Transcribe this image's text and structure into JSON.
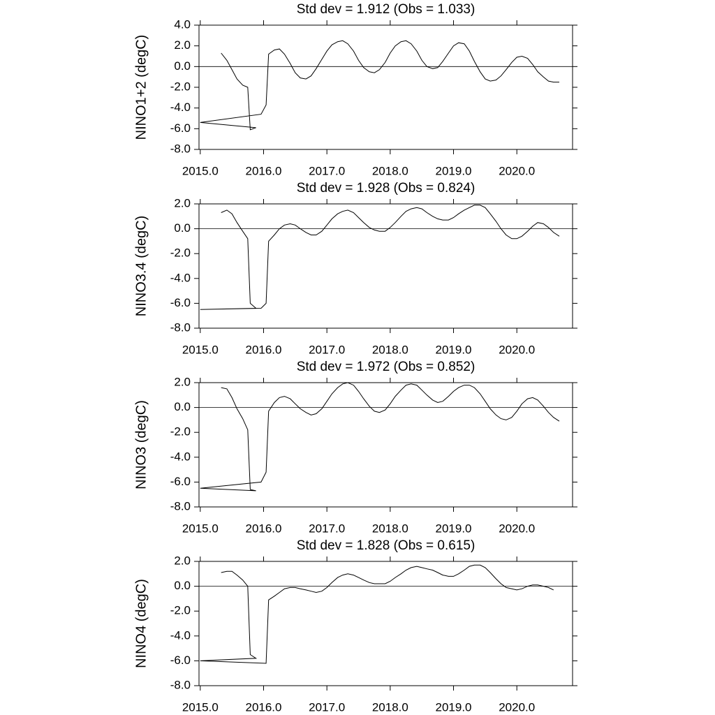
{
  "chart_data": [
    {
      "type": "line",
      "title": "Std dev = 1.912 (Obs = 1.033)",
      "y_label": "NINO1+2 (degC)",
      "color": "#000000",
      "x": [
        2015.33,
        2015.42,
        2015.5,
        2015.58,
        2015.67,
        2015.75,
        2015.79,
        2015.88,
        2015.0,
        2015.96,
        2016.04,
        2016.08,
        2016.17,
        2016.25,
        2016.33,
        2016.42,
        2016.5,
        2016.58,
        2016.67,
        2016.75,
        2016.83,
        2016.92,
        2017.0,
        2017.08,
        2017.17,
        2017.25,
        2017.33,
        2017.42,
        2017.5,
        2017.58,
        2017.67,
        2017.75,
        2017.83,
        2017.92,
        2018.0,
        2018.08,
        2018.17,
        2018.25,
        2018.33,
        2018.42,
        2018.5,
        2018.58,
        2018.67,
        2018.75,
        2018.83,
        2018.92,
        2019.0,
        2019.08,
        2019.17,
        2019.25,
        2019.33,
        2019.42,
        2019.5,
        2019.58,
        2019.67,
        2019.75,
        2019.83,
        2019.92,
        2020.0,
        2020.08,
        2020.17,
        2020.25,
        2020.33,
        2020.42,
        2020.5,
        2020.58,
        2020.67
      ],
      "values": [
        1.3,
        0.6,
        -0.3,
        -1.2,
        -1.8,
        -2.0,
        -6.1,
        -5.9,
        -5.4,
        -4.6,
        -3.7,
        1.2,
        1.6,
        1.7,
        1.2,
        0.3,
        -0.6,
        -1.1,
        -1.2,
        -0.9,
        -0.2,
        0.7,
        1.5,
        2.1,
        2.4,
        2.5,
        2.2,
        1.5,
        0.6,
        -0.1,
        -0.5,
        -0.6,
        -0.3,
        0.4,
        1.3,
        2.0,
        2.4,
        2.5,
        2.2,
        1.5,
        0.6,
        0.0,
        -0.2,
        -0.1,
        0.5,
        1.3,
        2.0,
        2.3,
        2.2,
        1.5,
        0.5,
        -0.5,
        -1.2,
        -1.4,
        -1.3,
        -0.9,
        -0.3,
        0.4,
        0.9,
        1.0,
        0.8,
        0.2,
        -0.5,
        -1.0,
        -1.4,
        -1.5,
        -1.5
      ],
      "xlim": [
        2014.98,
        2020.88
      ],
      "xticks": [
        {
          "value": 2015,
          "label": "2015.0"
        },
        {
          "value": 2016,
          "label": "2016.0"
        },
        {
          "value": 2017,
          "label": "2017.0"
        },
        {
          "value": 2018,
          "label": "2018.0"
        },
        {
          "value": 2019,
          "label": "2019.0"
        },
        {
          "value": 2020,
          "label": "2020.0"
        }
      ],
      "ylim": [
        -8,
        4
      ],
      "yticks": [
        {
          "value": 4,
          "label": "4.0"
        },
        {
          "value": 2,
          "label": "2.0"
        },
        {
          "value": 0,
          "label": "0.0"
        },
        {
          "value": -2,
          "label": "-2.0"
        },
        {
          "value": -4,
          "label": "-4.0"
        },
        {
          "value": -6,
          "label": "-6.0"
        },
        {
          "value": -8,
          "label": "-8.0"
        }
      ],
      "hline": 0
    },
    {
      "type": "line",
      "title": "Std dev = 1.928 (Obs = 0.824)",
      "y_label": "NINO3.4 (degC)",
      "color": "#000000",
      "x": [
        2015.33,
        2015.42,
        2015.5,
        2015.58,
        2015.67,
        2015.75,
        2015.79,
        2015.88,
        2015.0,
        2015.96,
        2016.04,
        2016.08,
        2016.17,
        2016.25,
        2016.33,
        2016.42,
        2016.5,
        2016.58,
        2016.67,
        2016.75,
        2016.83,
        2016.92,
        2017.0,
        2017.08,
        2017.17,
        2017.25,
        2017.33,
        2017.42,
        2017.5,
        2017.58,
        2017.67,
        2017.75,
        2017.83,
        2017.92,
        2018.0,
        2018.08,
        2018.17,
        2018.25,
        2018.33,
        2018.42,
        2018.5,
        2018.58,
        2018.67,
        2018.75,
        2018.83,
        2018.92,
        2019.0,
        2019.08,
        2019.17,
        2019.25,
        2019.33,
        2019.42,
        2019.5,
        2019.58,
        2019.67,
        2019.75,
        2019.83,
        2019.92,
        2020.0,
        2020.08,
        2020.17,
        2020.25,
        2020.33,
        2020.42,
        2020.5,
        2020.58,
        2020.67
      ],
      "values": [
        1.3,
        1.5,
        1.2,
        0.5,
        -0.2,
        -0.8,
        -6.0,
        -6.4,
        -6.5,
        -6.4,
        -6.0,
        -1.0,
        -0.5,
        0.0,
        0.3,
        0.4,
        0.3,
        0.0,
        -0.3,
        -0.5,
        -0.5,
        -0.2,
        0.3,
        0.8,
        1.2,
        1.4,
        1.5,
        1.3,
        0.9,
        0.5,
        0.1,
        -0.1,
        -0.2,
        -0.2,
        0.1,
        0.5,
        1.0,
        1.4,
        1.6,
        1.7,
        1.6,
        1.3,
        1.0,
        0.8,
        0.7,
        0.7,
        0.9,
        1.2,
        1.5,
        1.7,
        1.9,
        1.9,
        1.7,
        1.2,
        0.6,
        0.0,
        -0.5,
        -0.8,
        -0.8,
        -0.6,
        -0.2,
        0.2,
        0.5,
        0.4,
        0.1,
        -0.3,
        -0.6
      ],
      "xlim": [
        2014.98,
        2020.88
      ],
      "xticks": [
        {
          "value": 2015,
          "label": "2015.0"
        },
        {
          "value": 2016,
          "label": "2016.0"
        },
        {
          "value": 2017,
          "label": "2017.0"
        },
        {
          "value": 2018,
          "label": "2018.0"
        },
        {
          "value": 2019,
          "label": "2019.0"
        },
        {
          "value": 2020,
          "label": "2020.0"
        }
      ],
      "ylim": [
        -8,
        2
      ],
      "yticks": [
        {
          "value": 2,
          "label": "2.0"
        },
        {
          "value": 0,
          "label": "0.0"
        },
        {
          "value": -2,
          "label": "-2.0"
        },
        {
          "value": -4,
          "label": "-4.0"
        },
        {
          "value": -6,
          "label": "-6.0"
        },
        {
          "value": -8,
          "label": "-8.0"
        }
      ],
      "hline": 0
    },
    {
      "type": "line",
      "title": "Std dev = 1.972 (Obs = 0.852)",
      "y_label": "NINO3 (degC)",
      "color": "#000000",
      "x": [
        2015.33,
        2015.42,
        2015.5,
        2015.58,
        2015.67,
        2015.75,
        2015.79,
        2015.88,
        2015.0,
        2015.96,
        2016.04,
        2016.08,
        2016.17,
        2016.25,
        2016.33,
        2016.42,
        2016.5,
        2016.58,
        2016.67,
        2016.75,
        2016.83,
        2016.92,
        2017.0,
        2017.08,
        2017.17,
        2017.25,
        2017.33,
        2017.42,
        2017.5,
        2017.58,
        2017.67,
        2017.75,
        2017.83,
        2017.92,
        2018.0,
        2018.08,
        2018.17,
        2018.25,
        2018.33,
        2018.42,
        2018.5,
        2018.58,
        2018.67,
        2018.75,
        2018.83,
        2018.92,
        2019.0,
        2019.08,
        2019.17,
        2019.25,
        2019.33,
        2019.42,
        2019.5,
        2019.58,
        2019.67,
        2019.75,
        2019.83,
        2019.92,
        2020.0,
        2020.08,
        2020.17,
        2020.25,
        2020.33,
        2020.42,
        2020.5,
        2020.58,
        2020.67
      ],
      "values": [
        1.6,
        1.5,
        0.8,
        -0.1,
        -0.9,
        -1.8,
        -6.6,
        -6.7,
        -6.5,
        -6.0,
        -5.2,
        -0.3,
        0.4,
        0.8,
        0.9,
        0.7,
        0.3,
        -0.1,
        -0.4,
        -0.6,
        -0.5,
        -0.1,
        0.5,
        1.1,
        1.6,
        1.9,
        2.0,
        1.8,
        1.3,
        0.7,
        0.1,
        -0.3,
        -0.4,
        -0.2,
        0.3,
        0.9,
        1.4,
        1.8,
        1.9,
        1.8,
        1.4,
        1.0,
        0.6,
        0.4,
        0.5,
        0.9,
        1.3,
        1.6,
        1.8,
        1.8,
        1.6,
        1.1,
        0.5,
        -0.1,
        -0.6,
        -0.9,
        -1.0,
        -0.8,
        -0.3,
        0.3,
        0.7,
        0.8,
        0.6,
        0.1,
        -0.4,
        -0.8,
        -1.1
      ],
      "xlim": [
        2014.98,
        2020.88
      ],
      "xticks": [
        {
          "value": 2015,
          "label": "2015.0"
        },
        {
          "value": 2016,
          "label": "2016.0"
        },
        {
          "value": 2017,
          "label": "2017.0"
        },
        {
          "value": 2018,
          "label": "2018.0"
        },
        {
          "value": 2019,
          "label": "2019.0"
        },
        {
          "value": 2020,
          "label": "2020.0"
        }
      ],
      "ylim": [
        -8,
        2
      ],
      "yticks": [
        {
          "value": 2,
          "label": "2.0"
        },
        {
          "value": 0,
          "label": "0.0"
        },
        {
          "value": -2,
          "label": "-2.0"
        },
        {
          "value": -4,
          "label": "-4.0"
        },
        {
          "value": -6,
          "label": "-6.0"
        },
        {
          "value": -8,
          "label": "-8.0"
        }
      ],
      "hline": 0
    },
    {
      "type": "line",
      "title": "Std dev = 1.828 (Obs = 0.615)",
      "y_label": "NINO4 (degC)",
      "color": "#000000",
      "x": [
        2015.33,
        2015.42,
        2015.5,
        2015.58,
        2015.67,
        2015.75,
        2015.79,
        2015.88,
        2015.0,
        2016.04,
        2016.08,
        2016.17,
        2016.25,
        2016.33,
        2016.42,
        2016.5,
        2016.58,
        2016.67,
        2016.75,
        2016.83,
        2016.92,
        2017.0,
        2017.08,
        2017.17,
        2017.25,
        2017.33,
        2017.42,
        2017.5,
        2017.58,
        2017.67,
        2017.75,
        2017.83,
        2017.92,
        2018.0,
        2018.08,
        2018.17,
        2018.25,
        2018.33,
        2018.42,
        2018.5,
        2018.58,
        2018.67,
        2018.75,
        2018.83,
        2018.92,
        2019.0,
        2019.08,
        2019.17,
        2019.25,
        2019.33,
        2019.42,
        2019.5,
        2019.58,
        2019.67,
        2019.75,
        2019.83,
        2019.92,
        2020.0,
        2020.08,
        2020.17,
        2020.25,
        2020.33,
        2020.42,
        2020.5,
        2020.58
      ],
      "values": [
        1.1,
        1.2,
        1.2,
        0.9,
        0.5,
        0.0,
        -5.5,
        -5.8,
        -6.0,
        -6.2,
        -1.1,
        -0.8,
        -0.5,
        -0.2,
        -0.1,
        -0.1,
        -0.2,
        -0.3,
        -0.4,
        -0.5,
        -0.4,
        -0.1,
        0.3,
        0.7,
        0.9,
        1.0,
        0.9,
        0.7,
        0.5,
        0.3,
        0.2,
        0.2,
        0.2,
        0.4,
        0.7,
        1.0,
        1.3,
        1.5,
        1.6,
        1.5,
        1.4,
        1.3,
        1.1,
        0.9,
        0.8,
        0.8,
        1.0,
        1.3,
        1.6,
        1.7,
        1.7,
        1.5,
        1.1,
        0.6,
        0.2,
        -0.1,
        -0.2,
        -0.3,
        -0.2,
        0.0,
        0.1,
        0.1,
        0.0,
        -0.1,
        -0.3
      ],
      "xlim": [
        2014.98,
        2020.88
      ],
      "xticks": [
        {
          "value": 2015,
          "label": "2015.0"
        },
        {
          "value": 2016,
          "label": "2016.0"
        },
        {
          "value": 2017,
          "label": "2017.0"
        },
        {
          "value": 2018,
          "label": "2018.0"
        },
        {
          "value": 2019,
          "label": "2019.0"
        },
        {
          "value": 2020,
          "label": "2020.0"
        }
      ],
      "ylim": [
        -8,
        2
      ],
      "yticks": [
        {
          "value": 2,
          "label": "2.0"
        },
        {
          "value": 0,
          "label": "0.0"
        },
        {
          "value": -2,
          "label": "-2.0"
        },
        {
          "value": -4,
          "label": "-4.0"
        },
        {
          "value": -6,
          "label": "-6.0"
        },
        {
          "value": -8,
          "label": "-8.0"
        }
      ],
      "hline": 0
    }
  ]
}
